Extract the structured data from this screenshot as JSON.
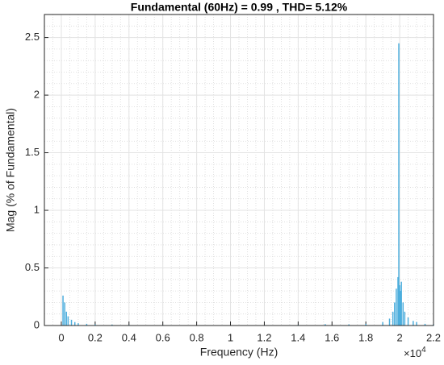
{
  "chart_data": {
    "type": "bar",
    "title": "Fundamental (60Hz) = 0.99 , THD= 5.12%",
    "x_label": "Frequency (Hz)",
    "y_label": "Mag (% of Fundamental)",
    "x_exponent_base": "×10",
    "x_exponent_power": "4",
    "color": "#4DAEDD",
    "grid": true,
    "minor_grid": true,
    "xlim": [
      -0.1,
      2.2
    ],
    "xticks": [
      0,
      0.2,
      0.4,
      0.6,
      0.8,
      1,
      1.2,
      1.4,
      1.6,
      1.8,
      2,
      2.2
    ],
    "ylim": [
      0,
      2.7
    ],
    "yticks": [
      0,
      0.5,
      1,
      1.5,
      2,
      2.5
    ],
    "x": [
      0.01,
      0.02,
      0.03,
      0.04,
      0.06,
      0.08,
      0.1,
      0.15,
      0.2,
      0.3,
      0.4,
      0.6,
      0.8,
      1.0,
      1.2,
      1.4,
      1.56,
      1.7,
      1.8,
      1.9,
      1.94,
      1.96,
      1.97,
      1.98,
      1.99,
      1.995,
      2.0,
      2.005,
      2.01,
      2.02,
      2.03,
      2.05,
      2.08,
      2.1,
      2.15,
      2.2
    ],
    "values": [
      0.26,
      0.2,
      0.12,
      0.08,
      0.05,
      0.03,
      0.02,
      0.015,
      0.01,
      0.008,
      0.005,
      0.004,
      0.003,
      0.003,
      0.004,
      0.005,
      0.012,
      0.01,
      0.015,
      0.03,
      0.06,
      0.12,
      0.2,
      0.32,
      0.42,
      2.45,
      0.35,
      0.3,
      0.38,
      0.2,
      0.12,
      0.07,
      0.04,
      0.03,
      0.015,
      0.01
    ]
  }
}
